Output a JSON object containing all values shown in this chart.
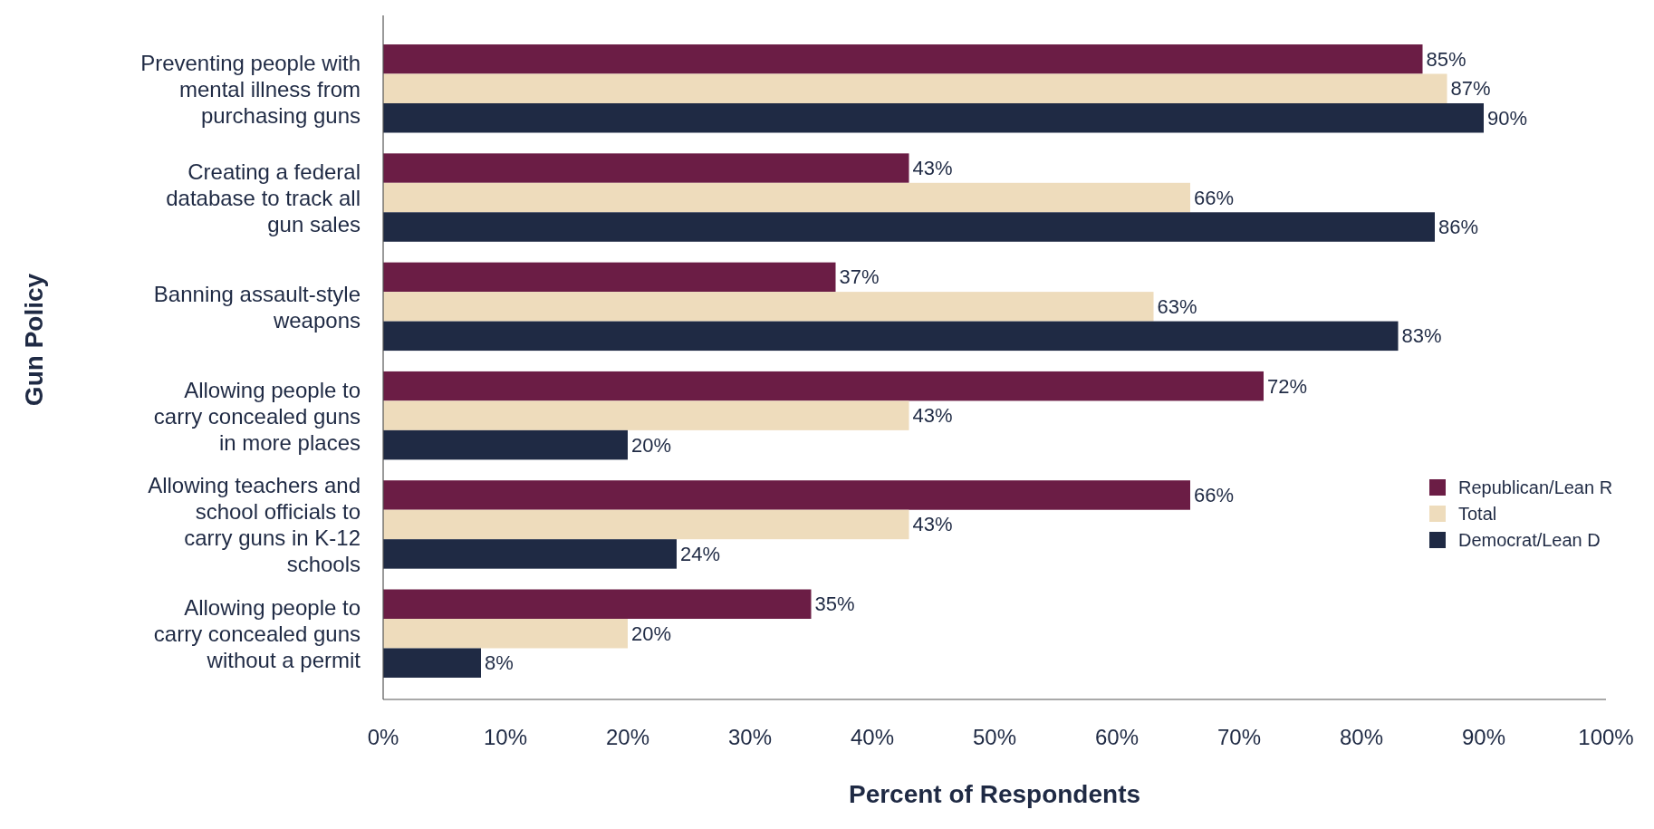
{
  "chart_data": {
    "type": "bar",
    "orientation": "horizontal",
    "xlabel": "Percent of Respondents",
    "ylabel": "Gun Policy",
    "categories": [
      "Preventing people with mental illness from purchasing guns",
      "Creating a federal database to track all gun sales",
      "Banning assault-style weapons",
      "Allowing people to carry concealed guns in more places",
      "Allowing teachers and school officials to carry guns in K-12 schools",
      "Allowing people to carry concealed guns without a permit"
    ],
    "series": [
      {
        "name": "Republican/Lean R",
        "color": "#6b1d45",
        "values": [
          85,
          43,
          37,
          72,
          66,
          35
        ],
        "value_labels": [
          "85%",
          "43%",
          "37%",
          "72%",
          "66%",
          "35%"
        ]
      },
      {
        "name": "Total",
        "color": "#eedcbc",
        "values": [
          87,
          66,
          63,
          43,
          43,
          20
        ],
        "value_labels": [
          "87%",
          "66%",
          "63%",
          "43%",
          "43%",
          "20%"
        ]
      },
      {
        "name": "Democrat/Lean D",
        "color": "#1f2a44",
        "values": [
          90,
          86,
          83,
          20,
          24,
          8
        ],
        "value_labels": [
          "90%",
          "86%",
          "83%",
          "20%",
          "24%",
          "8%"
        ]
      }
    ],
    "xlim": [
      0,
      100
    ],
    "xticks": [
      {
        "value": 0,
        "label": "0%"
      },
      {
        "value": 10,
        "label": "10%"
      },
      {
        "value": 20,
        "label": "20%"
      },
      {
        "value": 30,
        "label": "30%"
      },
      {
        "value": 40,
        "label": "40%"
      },
      {
        "value": 50,
        "label": "50%"
      },
      {
        "value": 60,
        "label": "60%"
      },
      {
        "value": 70,
        "label": "70%"
      },
      {
        "value": 80,
        "label": "80%"
      },
      {
        "value": 90,
        "label": "90%"
      },
      {
        "value": 100,
        "label": "100%"
      }
    ],
    "legend": "right",
    "grid": false
  }
}
